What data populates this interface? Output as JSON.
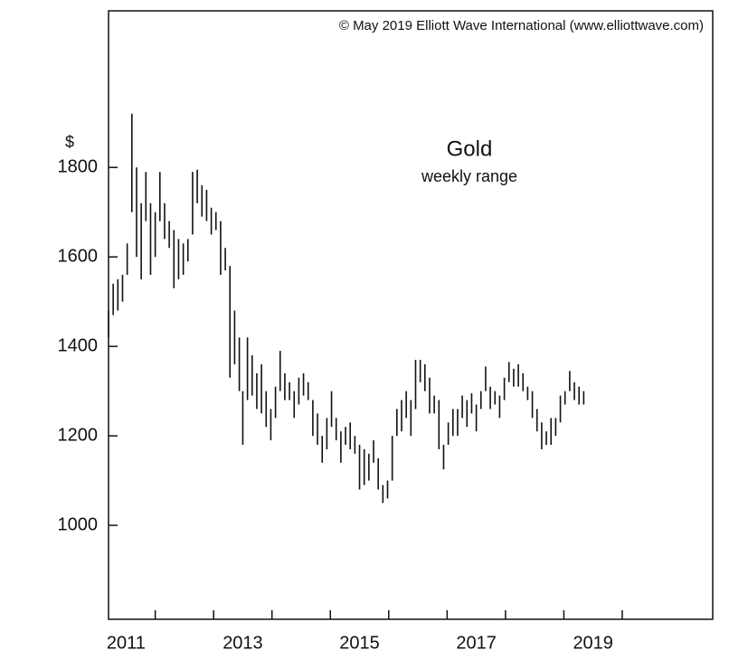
{
  "chart_data": {
    "type": "range",
    "title": "Gold",
    "subtitle": "weekly range",
    "source": "© May 2019 Elliott Wave International (www.elliottwave.com)",
    "y_unit": "$",
    "color": "#111111",
    "xlim": [
      2011.2,
      2021.55
    ],
    "ylim": [
      790,
      2150
    ],
    "xticks": [
      {
        "value": 2011.5,
        "label": "2011"
      },
      {
        "value": 2013.5,
        "label": "2013"
      },
      {
        "value": 2015.5,
        "label": "2015"
      },
      {
        "value": 2017.5,
        "label": "2017"
      },
      {
        "value": 2019.5,
        "label": "2019"
      }
    ],
    "xtick_marks": [
      2012,
      2013,
      2014,
      2015,
      2016,
      2017,
      2018,
      2019,
      2020
    ],
    "yticks": [
      1000,
      1200,
      1400,
      1600,
      1800
    ],
    "x": [
      2011.2,
      2011.28,
      2011.36,
      2011.44,
      2011.52,
      2011.6,
      2011.68,
      2011.76,
      2011.84,
      2011.92,
      2012.0,
      2012.08,
      2012.16,
      2012.24,
      2012.32,
      2012.4,
      2012.48,
      2012.56,
      2012.64,
      2012.72,
      2012.8,
      2012.88,
      2012.96,
      2013.04,
      2013.12,
      2013.2,
      2013.28,
      2013.36,
      2013.44,
      2013.5,
      2013.58,
      2013.66,
      2013.74,
      2013.82,
      2013.9,
      2013.98,
      2014.06,
      2014.14,
      2014.22,
      2014.3,
      2014.38,
      2014.46,
      2014.54,
      2014.62,
      2014.7,
      2014.78,
      2014.86,
      2014.94,
      2015.02,
      2015.1,
      2015.18,
      2015.26,
      2015.34,
      2015.42,
      2015.5,
      2015.58,
      2015.66,
      2015.74,
      2015.82,
      2015.9,
      2015.98,
      2016.06,
      2016.14,
      2016.22,
      2016.3,
      2016.38,
      2016.46,
      2016.54,
      2016.62,
      2016.7,
      2016.78,
      2016.86,
      2016.94,
      2017.02,
      2017.1,
      2017.18,
      2017.26,
      2017.34,
      2017.42,
      2017.5,
      2017.58,
      2017.66,
      2017.74,
      2017.82,
      2017.9,
      2017.98,
      2018.06,
      2018.14,
      2018.22,
      2018.3,
      2018.38,
      2018.46,
      2018.54,
      2018.62,
      2018.7,
      2018.78,
      2018.86,
      2018.94,
      2019.02,
      2019.1,
      2019.18,
      2019.26,
      2019.34
    ],
    "low": [
      1420,
      1470,
      1480,
      1500,
      1560,
      1700,
      1600,
      1550,
      1680,
      1560,
      1600,
      1680,
      1640,
      1620,
      1530,
      1550,
      1560,
      1590,
      1650,
      1720,
      1690,
      1680,
      1650,
      1660,
      1560,
      1570,
      1330,
      1360,
      1300,
      1180,
      1280,
      1290,
      1260,
      1250,
      1220,
      1190,
      1240,
      1300,
      1280,
      1280,
      1240,
      1270,
      1290,
      1280,
      1200,
      1180,
      1140,
      1170,
      1220,
      1190,
      1140,
      1180,
      1170,
      1160,
      1080,
      1090,
      1100,
      1140,
      1080,
      1050,
      1060,
      1100,
      1200,
      1210,
      1240,
      1200,
      1260,
      1320,
      1300,
      1250,
      1250,
      1170,
      1125,
      1180,
      1200,
      1200,
      1240,
      1220,
      1250,
      1210,
      1260,
      1300,
      1260,
      1270,
      1240,
      1280,
      1320,
      1310,
      1310,
      1300,
      1280,
      1240,
      1210,
      1170,
      1180,
      1180,
      1200,
      1230,
      1270,
      1300,
      1280,
      1270,
      1270
    ],
    "high": [
      1480,
      1540,
      1550,
      1560,
      1630,
      1920,
      1800,
      1720,
      1790,
      1720,
      1700,
      1790,
      1720,
      1680,
      1660,
      1640,
      1630,
      1640,
      1790,
      1795,
      1760,
      1750,
      1710,
      1700,
      1680,
      1620,
      1580,
      1480,
      1420,
      1300,
      1420,
      1380,
      1340,
      1360,
      1300,
      1260,
      1310,
      1390,
      1340,
      1320,
      1300,
      1330,
      1340,
      1320,
      1280,
      1250,
      1200,
      1240,
      1300,
      1240,
      1210,
      1220,
      1230,
      1200,
      1180,
      1170,
      1160,
      1190,
      1150,
      1090,
      1100,
      1200,
      1260,
      1280,
      1300,
      1280,
      1370,
      1370,
      1360,
      1330,
      1290,
      1280,
      1180,
      1230,
      1260,
      1260,
      1290,
      1280,
      1295,
      1270,
      1300,
      1355,
      1310,
      1300,
      1290,
      1330,
      1365,
      1350,
      1360,
      1340,
      1310,
      1300,
      1260,
      1230,
      1210,
      1240,
      1240,
      1290,
      1300,
      1345,
      1320,
      1310,
      1300
    ]
  }
}
